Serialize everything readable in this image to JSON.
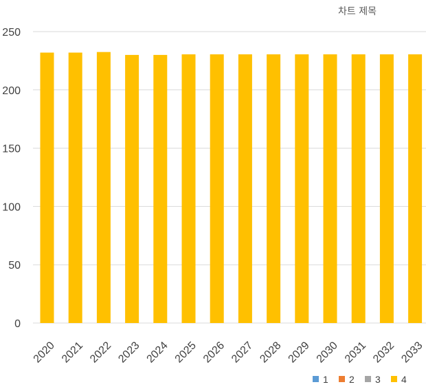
{
  "chart_data": {
    "type": "bar",
    "title": "차트 제목",
    "categories": [
      "2020",
      "2021",
      "2022",
      "2023",
      "2024",
      "2025",
      "2026",
      "2027",
      "2028",
      "2029",
      "2030",
      "2031",
      "2032",
      "2033"
    ],
    "series": [
      {
        "name": "1",
        "color": "#5b9bd5",
        "values": [
          0,
          0,
          0,
          0,
          0,
          0,
          0,
          0,
          0,
          0,
          0,
          0,
          0,
          0
        ]
      },
      {
        "name": "2",
        "color": "#ed7d31",
        "values": [
          0,
          0,
          0,
          0,
          0,
          0,
          0,
          0,
          0,
          0,
          0,
          0,
          0,
          0
        ]
      },
      {
        "name": "3",
        "color": "#a5a5a5",
        "values": [
          0,
          0,
          0,
          0,
          0,
          0,
          0,
          0,
          0,
          0,
          0,
          0,
          0,
          0
        ]
      },
      {
        "name": "4",
        "color": "#ffc000",
        "values": [
          232,
          232,
          232.5,
          230,
          230,
          230.5,
          230.5,
          230.5,
          230.5,
          230.5,
          230.5,
          230.5,
          230.5,
          230.5
        ]
      }
    ],
    "ylim": [
      0,
      250
    ],
    "yticks": [
      0,
      50,
      100,
      150,
      200,
      250
    ],
    "grid": true,
    "legend": "bottom-right",
    "xlabel": "",
    "ylabel": ""
  }
}
